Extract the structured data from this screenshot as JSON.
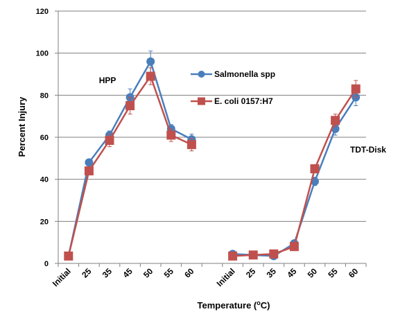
{
  "chart_data": {
    "type": "line",
    "xlabel": "Temperature (",
    "xlabel_sup": "o",
    "xlabel_tail": "C)",
    "ylabel": "Percent Injury",
    "ylim": [
      0,
      120
    ],
    "yticks": [
      0,
      20,
      40,
      60,
      80,
      100,
      120
    ],
    "grid": true,
    "legend_position": "upper-right-center",
    "categories": [
      "Initial",
      "25",
      "35",
      "45",
      "50",
      "55",
      "60",
      "",
      "Initial",
      "25",
      "35",
      "45",
      "50",
      "55",
      "60"
    ],
    "annotations": [
      {
        "text": "HPP",
        "category_index": 1.9,
        "y": 87
      },
      {
        "text": "TDT-Disk",
        "category_index": 14.6,
        "y": 54
      }
    ],
    "series": [
      {
        "name": "Salmonella spp",
        "color": "#4a7ebb",
        "marker": "circle",
        "segments": [
          {
            "start": 0,
            "values": [
              3.5,
              48,
              61,
              79,
              96,
              64,
              59
            ],
            "errors": [
              0,
              1,
              2,
              4,
              5,
              2,
              2.5
            ]
          },
          {
            "start": 8,
            "values": [
              4.5,
              4,
              3.5,
              9.5,
              39,
              64,
              79
            ],
            "errors": [
              0,
              0.5,
              0.5,
              1,
              2,
              3,
              4
            ]
          }
        ]
      },
      {
        "name": "E. coli 0157:H7",
        "color": "#c0504d",
        "marker": "square",
        "segments": [
          {
            "start": 0,
            "values": [
              3.5,
              44,
              58.5,
              75,
              89,
              61,
              56.5
            ],
            "errors": [
              0,
              1,
              3,
              4,
              4,
              3,
              3
            ]
          },
          {
            "start": 8,
            "values": [
              3.5,
              4,
              4.5,
              8,
              45,
              68,
              83
            ],
            "errors": [
              0,
              0.5,
              0.5,
              1,
              2,
              3,
              4
            ]
          }
        ]
      }
    ]
  }
}
